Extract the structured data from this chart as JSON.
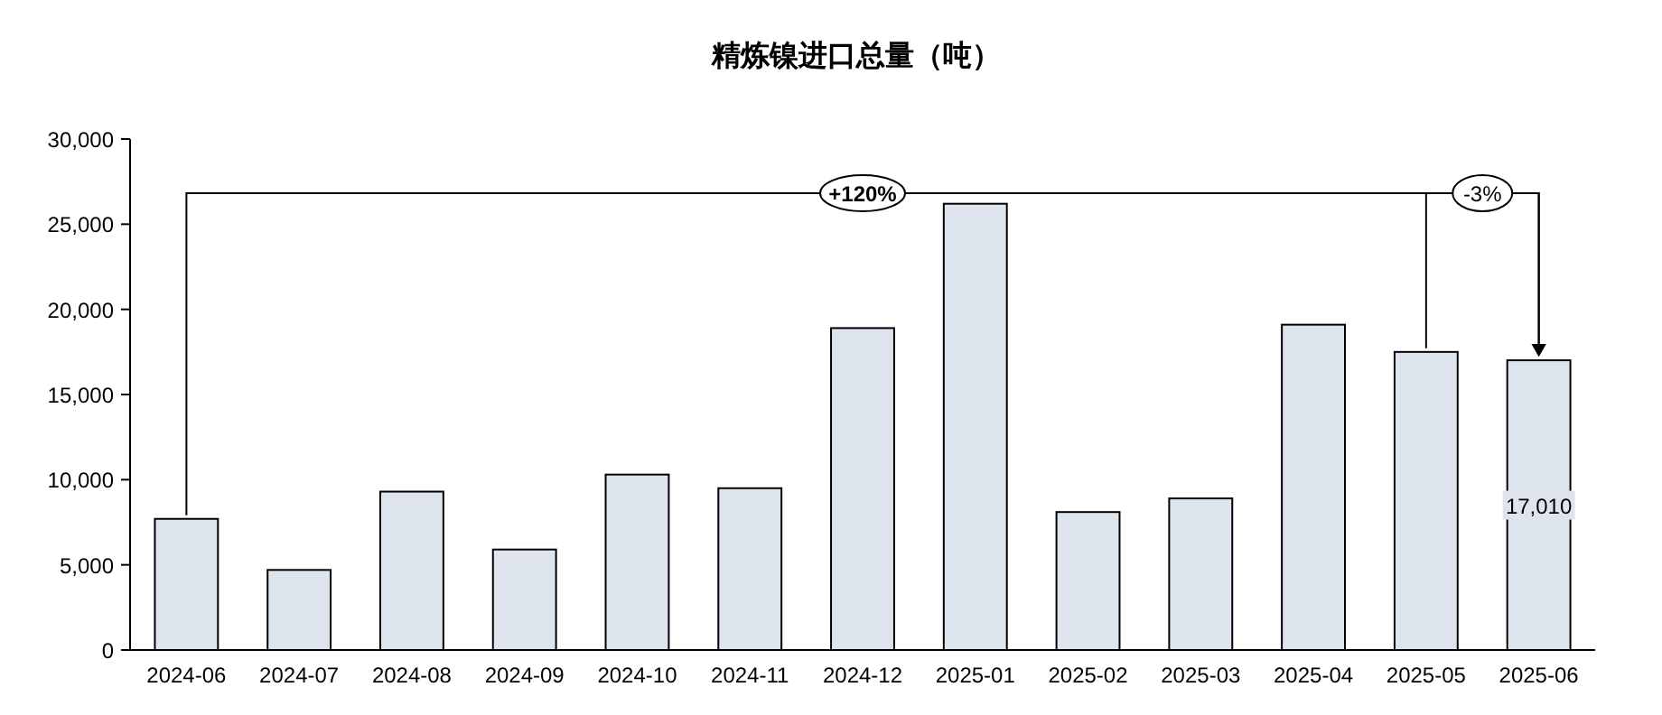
{
  "chart_data": {
    "type": "bar",
    "title": "精炼镍进口总量（吨）",
    "categories": [
      "2024-06",
      "2024-07",
      "2024-08",
      "2024-09",
      "2024-10",
      "2024-11",
      "2024-12",
      "2025-01",
      "2025-02",
      "2025-03",
      "2025-04",
      "2025-05",
      "2025-06"
    ],
    "values": [
      7700,
      4700,
      9300,
      5900,
      10300,
      9500,
      18900,
      26200,
      8100,
      8900,
      19100,
      17500,
      17010
    ],
    "value_labels": [
      null,
      null,
      null,
      null,
      null,
      null,
      null,
      null,
      null,
      null,
      null,
      null,
      "17,010"
    ],
    "color": "#dee4ee",
    "ylim": [
      0,
      30000
    ],
    "yticks": [
      {
        "value": 0,
        "label": "0"
      },
      {
        "value": 5000,
        "label": "5,000"
      },
      {
        "value": 10000,
        "label": "10,000"
      },
      {
        "value": 15000,
        "label": "15,000"
      },
      {
        "value": 20000,
        "label": "20,000"
      },
      {
        "value": 25000,
        "label": "25,000"
      },
      {
        "value": 30000,
        "label": "30,000"
      }
    ],
    "annotations": [
      "+120%",
      "-3%"
    ],
    "grid": false
  }
}
